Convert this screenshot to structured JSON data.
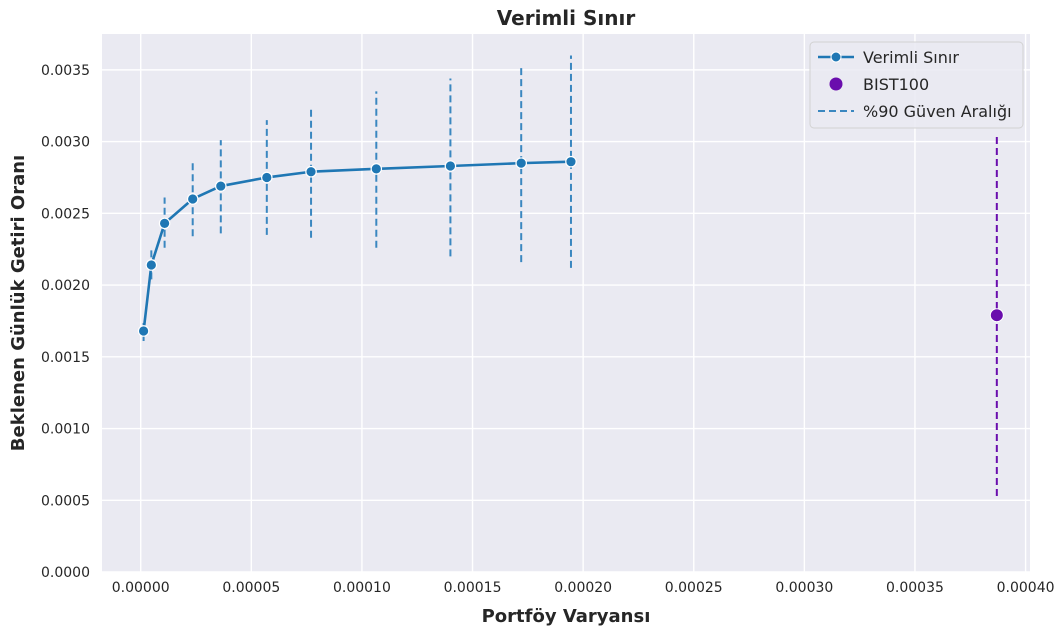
{
  "chart_data": {
    "type": "line",
    "title": "Verimli Sınır",
    "xlabel": "Portföy Varyansı",
    "ylabel": "Beklenen Günlük Getiri Oranı",
    "xlim": [
      -1.75e-05,
      0.000402
    ],
    "ylim": [
      0,
      0.00375
    ],
    "xticks": [
      0,
      5e-05,
      0.0001,
      0.00015,
      0.0002,
      0.00025,
      0.0003,
      0.00035,
      0.0004
    ],
    "xtick_labels": [
      "0.00000",
      "0.00005",
      "0.00010",
      "0.00015",
      "0.00020",
      "0.00025",
      "0.00030",
      "0.00035",
      "0.00040"
    ],
    "yticks": [
      0,
      0.0005,
      0.001,
      0.0015,
      0.002,
      0.0025,
      0.003,
      0.0035
    ],
    "ytick_labels": [
      "0.0000",
      "0.0005",
      "0.0010",
      "0.0015",
      "0.0020",
      "0.0025",
      "0.0030",
      "0.0035"
    ],
    "grid": true,
    "legend_position": "top-right",
    "series": [
      {
        "name": "Verimli Sınır",
        "kind": "line-markers",
        "color": "#1f77b4",
        "x": [
          1.3e-06,
          4.8e-06,
          1.08e-05,
          2.35e-05,
          3.62e-05,
          5.7e-05,
          7.7e-05,
          0.0001065,
          0.00014,
          0.000172,
          0.0001945
        ],
        "y": [
          0.00168,
          0.00214,
          0.00243,
          0.0026,
          0.00269,
          0.00275,
          0.00279,
          0.00281,
          0.00283,
          0.00285,
          0.00286
        ]
      },
      {
        "name": "%90 Güven Aralığı",
        "kind": "error-bars",
        "color": "#3a87c0",
        "x": [
          1.3e-06,
          4.8e-06,
          1.08e-05,
          2.35e-05,
          3.62e-05,
          5.7e-05,
          7.7e-05,
          0.0001065,
          0.00014,
          0.000172,
          0.0001945
        ],
        "lower": [
          0.00161,
          0.00204,
          0.00226,
          0.00234,
          0.00236,
          0.00235,
          0.00233,
          0.00226,
          0.0022,
          0.00216,
          0.00212
        ],
        "upper": [
          0.00176,
          0.00226,
          0.00261,
          0.00286,
          0.00301,
          0.00315,
          0.00324,
          0.00335,
          0.00344,
          0.00352,
          0.0036
        ]
      },
      {
        "name": "BIST100",
        "kind": "point",
        "color": "#6a0dad",
        "x": [
          0.000387
        ],
        "y": [
          0.00179
        ],
        "lower": [
          0.00053
        ],
        "upper": [
          0.00305
        ]
      }
    ],
    "legend": [
      {
        "label": "Verimli Sınır",
        "symbol": "line-marker",
        "color": "#1f77b4"
      },
      {
        "label": "BIST100",
        "symbol": "dot",
        "color": "#6a0dad"
      },
      {
        "label": "%90 Güven Aralığı",
        "symbol": "dashed-line",
        "color": "#3a87c0"
      }
    ],
    "colors": {
      "plot_background": "#eaeaf2",
      "grid": "#ffffff"
    }
  }
}
